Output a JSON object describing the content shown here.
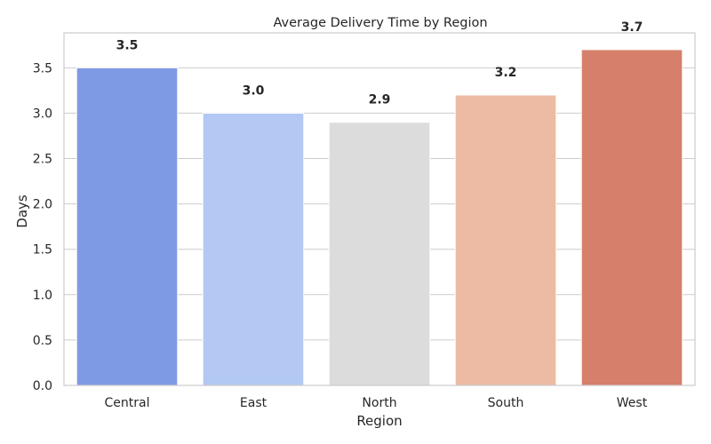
{
  "chart_data": {
    "type": "bar",
    "title": "Average Delivery Time by Region",
    "xlabel": "Region",
    "ylabel": "Days",
    "categories": [
      "Central",
      "East",
      "North",
      "South",
      "West"
    ],
    "values": [
      3.5,
      3.0,
      2.9,
      3.2,
      3.7
    ],
    "data_labels": [
      "3.5",
      "3.0",
      "2.9",
      "3.2",
      "3.7"
    ],
    "colors": [
      "#7f9ae4",
      "#b3c8f3",
      "#dcdcdc",
      "#edbba4",
      "#d67f6a"
    ],
    "ylim": [
      0,
      3.885
    ],
    "yticks": [
      0.0,
      0.5,
      1.0,
      1.5,
      2.0,
      2.5,
      3.0,
      3.5
    ],
    "ytick_labels": [
      "0.0",
      "0.5",
      "1.0",
      "1.5",
      "2.0",
      "2.5",
      "3.0",
      "3.5"
    ],
    "grid": "horizontal",
    "legend": "none"
  }
}
